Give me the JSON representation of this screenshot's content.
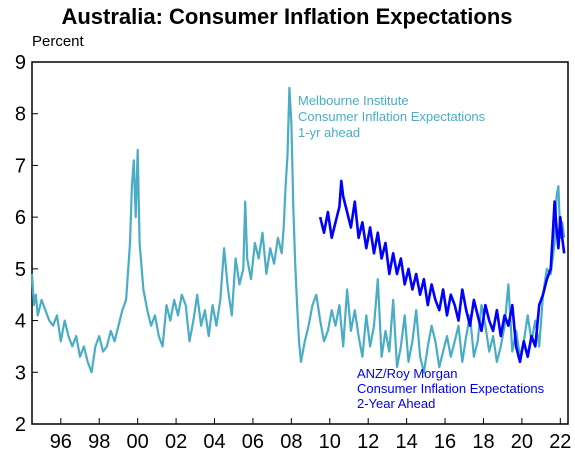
{
  "chart_data": {
    "type": "line",
    "title": "Australia: Consumer Inflation Expectations",
    "unit_label": "Percent",
    "xlabel": "",
    "ylabel": "",
    "ylim": [
      2,
      9
    ],
    "xlim": [
      1995.0,
      2022.9
    ],
    "y_ticks": [
      "2",
      "3",
      "4",
      "5",
      "6",
      "7",
      "8",
      "9"
    ],
    "x_ticks": [
      "96",
      "98",
      "00",
      "02",
      "04",
      "06",
      "08",
      "10",
      "12",
      "14",
      "16",
      "18",
      "20",
      "22"
    ],
    "grid": false,
    "legend": "none",
    "colors": {
      "melbourne": "#4bacc6",
      "anz": "#0000ff"
    },
    "annotations": [
      {
        "series": "melbourne",
        "lines": [
          "Melbourne Institute",
          "Consumer Inflation Expectations",
          "1-yr ahead"
        ]
      },
      {
        "series": "anz",
        "lines": [
          "ANZ/Roy Morgan",
          "Consumer Inflation Expectations",
          "2-Year Ahead"
        ]
      }
    ],
    "series": [
      {
        "id": "melbourne",
        "x": [
          1995.0,
          1995.1,
          1995.2,
          1995.3,
          1995.5,
          1995.7,
          1995.9,
          1996.1,
          1996.3,
          1996.5,
          1996.7,
          1996.9,
          1997.1,
          1997.3,
          1997.5,
          1997.7,
          1997.9,
          1998.1,
          1998.3,
          1998.5,
          1998.7,
          1998.9,
          1999.1,
          1999.3,
          1999.5,
          1999.7,
          1999.9,
          2000.1,
          2000.2,
          2000.3,
          2000.4,
          2000.5,
          2000.6,
          2000.8,
          2001.0,
          2001.2,
          2001.4,
          2001.6,
          2001.8,
          2002.0,
          2002.2,
          2002.4,
          2002.6,
          2002.8,
          2003.0,
          2003.2,
          2003.4,
          2003.6,
          2003.8,
          2004.0,
          2004.2,
          2004.4,
          2004.6,
          2004.8,
          2005.0,
          2005.2,
          2005.4,
          2005.6,
          2005.8,
          2006.0,
          2006.1,
          2006.2,
          2006.4,
          2006.6,
          2006.8,
          2007.0,
          2007.2,
          2007.4,
          2007.6,
          2007.8,
          2008.0,
          2008.1,
          2008.2,
          2008.3,
          2008.4,
          2008.5,
          2008.6,
          2008.7,
          2008.8,
          2008.9,
          2009.0,
          2009.2,
          2009.4,
          2009.6,
          2009.8,
          2010.0,
          2010.2,
          2010.4,
          2010.6,
          2010.8,
          2011.0,
          2011.2,
          2011.4,
          2011.6,
          2011.8,
          2012.0,
          2012.2,
          2012.4,
          2012.6,
          2012.8,
          2013.0,
          2013.2,
          2013.4,
          2013.6,
          2013.8,
          2014.0,
          2014.2,
          2014.4,
          2014.6,
          2014.8,
          2015.0,
          2015.2,
          2015.4,
          2015.6,
          2015.8,
          2016.0,
          2016.2,
          2016.4,
          2016.6,
          2016.8,
          2017.0,
          2017.2,
          2017.4,
          2017.6,
          2017.8,
          2018.0,
          2018.2,
          2018.4,
          2018.6,
          2018.8,
          2019.0,
          2019.2,
          2019.4,
          2019.6,
          2019.8,
          2020.0,
          2020.2,
          2020.4,
          2020.6,
          2020.8,
          2021.0,
          2021.2,
          2021.4,
          2021.6,
          2021.8,
          2022.0,
          2022.2,
          2022.3,
          2022.4,
          2022.5,
          2022.6,
          2022.7
        ],
        "y": [
          4.9,
          4.3,
          4.5,
          4.1,
          4.4,
          4.2,
          4.0,
          3.9,
          4.1,
          3.6,
          4.0,
          3.7,
          3.5,
          3.7,
          3.3,
          3.5,
          3.2,
          3.0,
          3.5,
          3.7,
          3.4,
          3.5,
          3.8,
          3.6,
          3.9,
          4.2,
          4.4,
          5.5,
          6.6,
          7.1,
          6.0,
          7.3,
          5.5,
          4.6,
          4.2,
          3.9,
          4.1,
          3.7,
          3.5,
          4.3,
          4.0,
          4.4,
          4.1,
          4.5,
          4.3,
          3.6,
          4.0,
          4.5,
          3.9,
          4.2,
          3.7,
          4.3,
          3.9,
          4.4,
          5.4,
          4.6,
          4.1,
          5.2,
          4.7,
          5.0,
          6.3,
          5.2,
          4.8,
          5.5,
          5.2,
          5.7,
          4.9,
          5.4,
          5.1,
          5.6,
          5.3,
          5.8,
          6.6,
          7.2,
          8.5,
          7.8,
          6.2,
          5.1,
          4.3,
          3.6,
          3.2,
          3.6,
          3.9,
          4.3,
          4.5,
          4.0,
          3.6,
          3.8,
          4.2,
          3.9,
          4.3,
          3.5,
          4.6,
          3.8,
          4.2,
          3.7,
          3.3,
          4.1,
          3.5,
          3.9,
          4.8,
          3.3,
          3.8,
          3.4,
          4.4,
          3.1,
          3.5,
          4.1,
          3.2,
          3.6,
          4.2,
          3.3,
          3.0,
          3.5,
          3.9,
          3.6,
          3.1,
          3.4,
          3.7,
          3.3,
          3.6,
          3.9,
          3.2,
          3.7,
          4.1,
          3.3,
          3.6,
          4.3,
          3.9,
          3.4,
          3.7,
          3.2,
          3.5,
          3.9,
          4.7,
          3.4,
          3.8,
          3.3,
          3.6,
          4.1,
          3.6,
          4.0,
          3.5,
          4.5,
          5.0,
          4.9,
          5.5,
          6.4,
          6.6,
          5.6,
          5.9,
          5.6
        ]
      },
      {
        "id": "anz",
        "x": [
          2010.0,
          2010.2,
          2010.4,
          2010.6,
          2010.8,
          2011.0,
          2011.1,
          2011.2,
          2011.4,
          2011.6,
          2011.8,
          2012.0,
          2012.2,
          2012.4,
          2012.6,
          2012.8,
          2013.0,
          2013.2,
          2013.4,
          2013.6,
          2013.8,
          2014.0,
          2014.2,
          2014.4,
          2014.6,
          2014.8,
          2015.0,
          2015.2,
          2015.4,
          2015.6,
          2015.8,
          2016.0,
          2016.2,
          2016.4,
          2016.6,
          2016.8,
          2017.0,
          2017.2,
          2017.4,
          2017.6,
          2017.8,
          2018.0,
          2018.2,
          2018.4,
          2018.6,
          2018.8,
          2019.0,
          2019.2,
          2019.4,
          2019.6,
          2019.8,
          2020.0,
          2020.2,
          2020.4,
          2020.6,
          2020.8,
          2021.0,
          2021.2,
          2021.4,
          2021.6,
          2021.8,
          2022.0,
          2022.1,
          2022.2,
          2022.3,
          2022.4,
          2022.5,
          2022.6,
          2022.7
        ],
        "y": [
          6.0,
          5.7,
          6.1,
          5.6,
          5.9,
          6.2,
          6.7,
          6.4,
          6.1,
          5.8,
          6.3,
          5.6,
          5.9,
          5.4,
          5.8,
          5.3,
          5.7,
          5.2,
          5.5,
          4.9,
          5.3,
          4.9,
          5.2,
          4.7,
          5.0,
          4.6,
          4.9,
          4.5,
          4.8,
          4.3,
          4.7,
          4.4,
          4.2,
          4.6,
          4.1,
          4.5,
          4.3,
          4.0,
          4.6,
          4.2,
          3.9,
          4.4,
          4.1,
          3.8,
          4.3,
          4.0,
          3.8,
          4.2,
          3.7,
          4.1,
          3.9,
          4.3,
          3.5,
          3.2,
          3.6,
          3.3,
          3.7,
          3.5,
          4.3,
          4.5,
          4.8,
          5.0,
          5.6,
          6.3,
          5.8,
          5.4,
          6.0,
          5.6,
          5.3
        ]
      }
    ]
  }
}
